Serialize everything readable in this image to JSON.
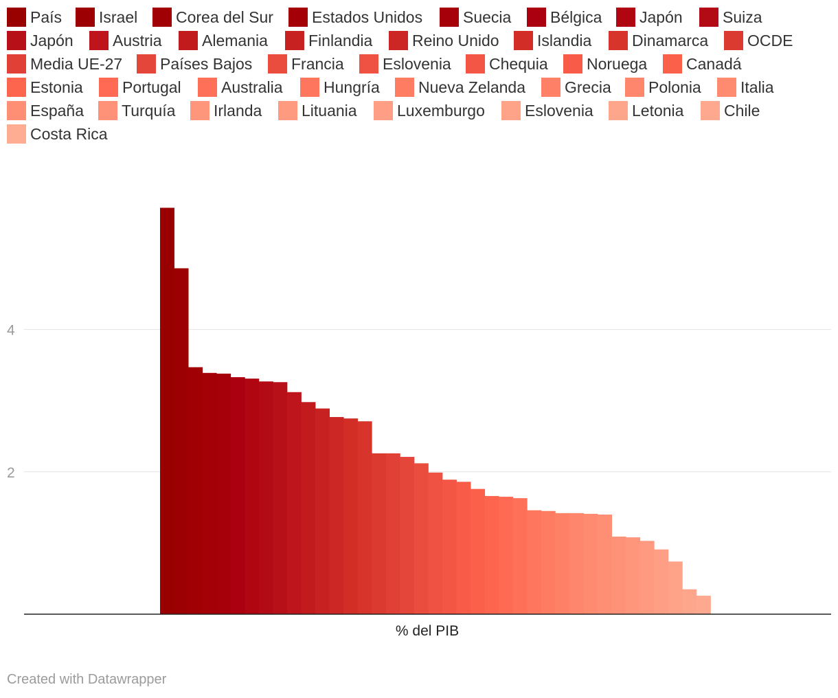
{
  "chart_data": {
    "type": "bar",
    "xlabel": "% del PIB",
    "ylabel": "",
    "ylim": [
      0,
      6
    ],
    "yticks": [
      2,
      4
    ],
    "grid": true,
    "legend_position": "top",
    "categories": [
      "% del PIB"
    ],
    "series": [
      {
        "name": "País",
        "value": 5.71,
        "color": "#990000"
      },
      {
        "name": "Israel",
        "value": 4.86,
        "color": "#9c0002"
      },
      {
        "name": "Corea del Sur",
        "value": 3.47,
        "color": "#a00004"
      },
      {
        "name": "Estados Unidos",
        "value": 3.39,
        "color": "#a30007"
      },
      {
        "name": "Suecia",
        "value": 3.38,
        "color": "#a6000a"
      },
      {
        "name": "Bélgica",
        "value": 3.33,
        "color": "#ab000f"
      },
      {
        "name": "Japón",
        "value": 3.31,
        "color": "#b00612"
      },
      {
        "name": "Suiza",
        "value": 3.27,
        "color": "#b30b15"
      },
      {
        "name": "Japón",
        "value": 3.26,
        "color": "#b81018"
      },
      {
        "name": "Austria",
        "value": 3.12,
        "color": "#bd151b"
      },
      {
        "name": "Alemania",
        "value": 2.98,
        "color": "#c21b1e"
      },
      {
        "name": "Finlandia",
        "value": 2.89,
        "color": "#c72121"
      },
      {
        "name": "Reino Unido",
        "value": 2.77,
        "color": "#cc2724"
      },
      {
        "name": "Islandia",
        "value": 2.75,
        "color": "#d22e27"
      },
      {
        "name": "Dinamarca",
        "value": 2.71,
        "color": "#d7342b"
      },
      {
        "name": "OCDE",
        "value": 2.26,
        "color": "#db3a30"
      },
      {
        "name": "Media UE-27",
        "value": 2.26,
        "color": "#e04035"
      },
      {
        "name": "Países Bajos",
        "value": 2.21,
        "color": "#e5463a"
      },
      {
        "name": "Francia",
        "value": 2.12,
        "color": "#ea4c3e"
      },
      {
        "name": "Eslovenia",
        "value": 1.99,
        "color": "#ef5142"
      },
      {
        "name": "Chequia",
        "value": 1.89,
        "color": "#f45645"
      },
      {
        "name": "Noruega",
        "value": 1.86,
        "color": "#f85b48"
      },
      {
        "name": "Canadá",
        "value": 1.76,
        "color": "#fb604b"
      },
      {
        "name": "Estonia",
        "value": 1.66,
        "color": "#fd654f"
      },
      {
        "name": "Portugal",
        "value": 1.65,
        "color": "#fe6a53"
      },
      {
        "name": "Australia",
        "value": 1.63,
        "color": "#fe7058"
      },
      {
        "name": "Hungría",
        "value": 1.46,
        "color": "#fe765d"
      },
      {
        "name": "Nueva Zelanda",
        "value": 1.45,
        "color": "#fe7c62"
      },
      {
        "name": "Grecia",
        "value": 1.42,
        "color": "#fe8167"
      },
      {
        "name": "Polonia",
        "value": 1.42,
        "color": "#fe866c"
      },
      {
        "name": "Italia",
        "value": 1.41,
        "color": "#fe8a70"
      },
      {
        "name": "España",
        "value": 1.4,
        "color": "#fe8e74"
      },
      {
        "name": "Turquía",
        "value": 1.09,
        "color": "#fe9278"
      },
      {
        "name": "Irlanda",
        "value": 1.08,
        "color": "#fe967c"
      },
      {
        "name": "Lituania",
        "value": 1.03,
        "color": "#fe9a80"
      },
      {
        "name": "Luxemburgo",
        "value": 0.91,
        "color": "#fe9e84"
      },
      {
        "name": "Eslovenia",
        "value": 0.74,
        "color": "#fea288"
      },
      {
        "name": "Letonia",
        "value": 0.35,
        "color": "#fea68c"
      },
      {
        "name": "Chile",
        "value": 0.26,
        "color": "#fea98f"
      },
      {
        "name": "Costa Rica",
        "value": 0.0,
        "color": "#feac92"
      }
    ]
  },
  "credit": "Created with Datawrapper"
}
